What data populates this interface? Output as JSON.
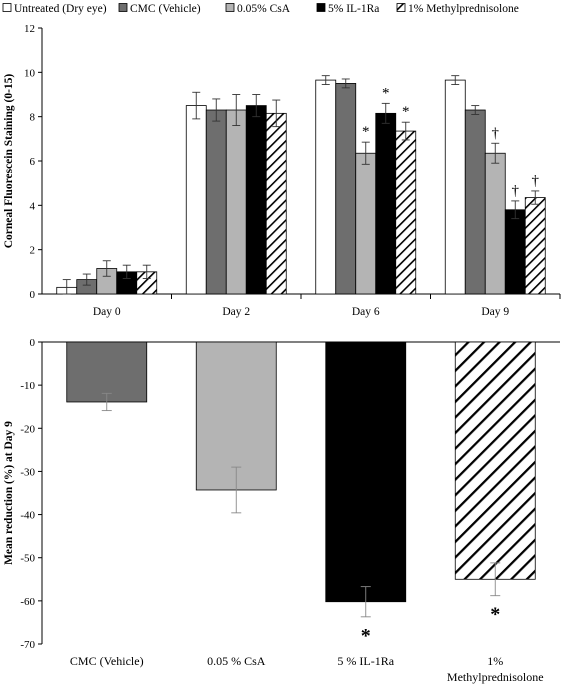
{
  "chart_data": [
    {
      "type": "bar",
      "title": "",
      "xlabel": "",
      "ylabel": "Corneal Fluorescein Staining (0-15)",
      "ylim": [
        0,
        12
      ],
      "yticks": [
        0,
        2,
        4,
        6,
        8,
        10,
        12
      ],
      "grid": false,
      "legend": "top",
      "categories": [
        "Day 0",
        "Day 2",
        "Day 6",
        "Day 9"
      ],
      "series": [
        {
          "name": "Untreated (Dry eye)",
          "pattern": "white",
          "values": [
            0.3,
            8.5,
            9.65,
            9.65
          ],
          "errors": [
            0.35,
            0.6,
            0.2,
            0.2
          ]
        },
        {
          "name": "CMC (Vehicle)",
          "pattern": "darkgray",
          "values": [
            0.65,
            8.3,
            9.5,
            8.3
          ],
          "errors": [
            0.25,
            0.5,
            0.2,
            0.2
          ]
        },
        {
          "name": "0.05% CsA",
          "pattern": "lightgray",
          "values": [
            1.15,
            8.3,
            6.35,
            6.35
          ],
          "errors": [
            0.35,
            0.7,
            0.5,
            0.45
          ]
        },
        {
          "name": "5% IL-1Ra",
          "pattern": "black",
          "values": [
            1.0,
            8.5,
            8.15,
            3.8
          ],
          "errors": [
            0.3,
            0.5,
            0.45,
            0.4
          ]
        },
        {
          "name": "1% Methylprednisolone",
          "pattern": "hatch",
          "values": [
            1.0,
            8.15,
            7.35,
            4.35
          ],
          "errors": [
            0.3,
            0.6,
            0.4,
            0.3
          ]
        }
      ],
      "annotations": [
        {
          "series": 2,
          "category": 2,
          "text": "*"
        },
        {
          "series": 3,
          "category": 2,
          "text": "*"
        },
        {
          "series": 4,
          "category": 2,
          "text": "*"
        },
        {
          "series": 2,
          "category": 3,
          "text": "†"
        },
        {
          "series": 3,
          "category": 3,
          "text": "†"
        },
        {
          "series": 4,
          "category": 3,
          "text": "†"
        }
      ]
    },
    {
      "type": "bar",
      "title": "",
      "xlabel": "",
      "ylabel": "Mean reduction (%) at Day 9",
      "ylim": [
        -70,
        0
      ],
      "yticks": [
        0,
        -10,
        -20,
        -30,
        -40,
        -50,
        -60,
        -70
      ],
      "grid": false,
      "categories": [
        [
          "CMC (Vehicle)"
        ],
        [
          "0.05 % CsA"
        ],
        [
          "5 % IL-1Ra"
        ],
        [
          "1%",
          "Methylprednisolone"
        ]
      ],
      "series": [
        {
          "name": "",
          "values": [
            -13.9,
            -34.3,
            -60.2,
            -55.0
          ],
          "errors": [
            2.0,
            5.3,
            3.5,
            3.8
          ],
          "patterns": [
            "darkgray",
            "lightgray",
            "black",
            "hatch"
          ]
        }
      ],
      "annotations": [
        {
          "category": 2,
          "text": "*"
        },
        {
          "category": 3,
          "text": "*"
        }
      ]
    }
  ]
}
